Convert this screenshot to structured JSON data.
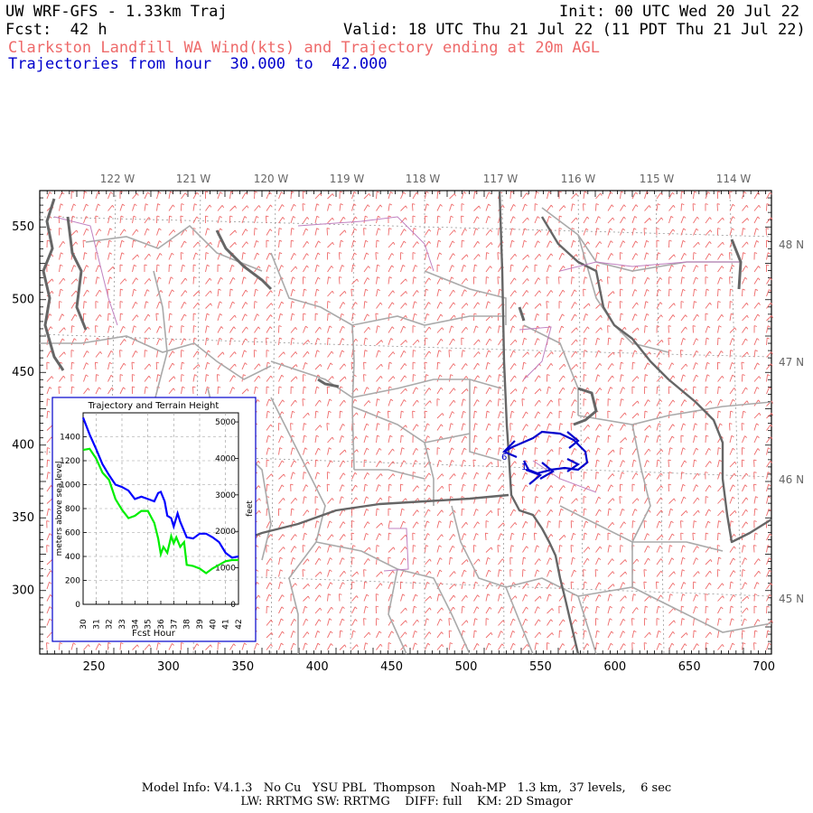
{
  "header": {
    "title": "UW WRF-GFS - 1.33km Traj",
    "init": "Init: 00 UTC Wed 20 Jul 22",
    "fcst": "Fcst:  42 h",
    "valid": "Valid: 18 UTC Thu 21 Jul 22 (11 PDT Thu 21 Jul 22)",
    "subtitle": "Clarkston Landfill WA Wind(kts) and Trajectory ending at 20m AGL",
    "traj_range": "Trajectories from hour  30.000 to  42.000"
  },
  "map": {
    "lon_labels": [
      "122 W",
      "121 W",
      "120 W",
      "119 W",
      "118 W",
      "117 W",
      "116 W",
      "115 W",
      "114 W"
    ],
    "lat_labels": [
      "48 N",
      "47 N",
      "46 N",
      "45 N"
    ],
    "x_ticks": [
      "250",
      "300",
      "350",
      "400",
      "450",
      "500",
      "550",
      "600",
      "650",
      "700"
    ],
    "y_ticks": [
      "550",
      "500",
      "450",
      "400",
      "350",
      "300"
    ],
    "trajectory_labels": [
      "1",
      "6"
    ],
    "colors": {
      "wind_barbs": "#ee6a6a",
      "trajectory": "#0000cc",
      "borders": "#aaaaaa",
      "states": "#666666",
      "water": "#c080c0"
    }
  },
  "inset": {
    "title": "Trajectory and Terrain Height",
    "xlabel": "Fcst Hour",
    "ylabel_left": "meters above sea level",
    "ylabel_right": "feet",
    "left_ticks": [
      "0",
      "200",
      "400",
      "600",
      "800",
      "1000",
      "1200",
      "1400"
    ],
    "right_ticks": [
      "0",
      "1000",
      "2000",
      "3000",
      "4000",
      "5000"
    ],
    "x_ticks": [
      "30",
      "31",
      "32",
      "33",
      "34",
      "35",
      "36",
      "37",
      "38",
      "39",
      "40",
      "41",
      "42"
    ]
  },
  "chart_data": {
    "type": "line",
    "title": "Trajectory and Terrain Height",
    "xlabel": "Fcst Hour",
    "ylabel": "meters above sea level",
    "xlim": [
      30,
      42
    ],
    "ylim": [
      0,
      1600
    ],
    "grid": true,
    "series": [
      {
        "color": "#0000ff",
        "x": [
          30.0,
          30.5,
          31.0,
          31.5,
          32.0,
          32.5,
          33.0,
          33.5,
          34.0,
          34.5,
          35.0,
          35.5,
          35.8,
          36.0,
          36.3,
          36.5,
          36.8,
          37.0,
          37.3,
          37.5,
          38.0,
          38.5,
          39.0,
          39.5,
          40.0,
          40.5,
          41.0,
          41.5,
          42.0
        ],
        "values": [
          1560,
          1420,
          1300,
          1170,
          1080,
          1000,
          980,
          950,
          880,
          900,
          880,
          860,
          930,
          940,
          860,
          740,
          720,
          650,
          760,
          690,
          560,
          550,
          590,
          590,
          560,
          520,
          430,
          390,
          400
        ]
      },
      {
        "color": "#00ee00",
        "x": [
          30.0,
          30.5,
          31.0,
          31.5,
          32.0,
          32.5,
          33.0,
          33.5,
          34.0,
          34.5,
          35.0,
          35.5,
          35.8,
          36.0,
          36.2,
          36.5,
          36.8,
          37.0,
          37.2,
          37.5,
          37.8,
          38.0,
          38.5,
          39.0,
          39.5,
          40.0,
          40.5,
          41.0,
          41.5,
          42.0
        ],
        "values": [
          1290,
          1300,
          1220,
          1100,
          1040,
          880,
          790,
          720,
          740,
          780,
          780,
          680,
          550,
          420,
          480,
          430,
          570,
          510,
          560,
          480,
          520,
          330,
          320,
          300,
          260,
          300,
          330,
          360,
          370,
          370
        ]
      }
    ]
  },
  "footer": {
    "line1": "Model Info: V4.1.3   No Cu   YSU PBL  Thompson    Noah-MP   1.3 km,  37 levels,    6 sec",
    "line2": "LW: RRTMG SW: RRTMG    DIFF: full    KM: 2D Smagor"
  }
}
